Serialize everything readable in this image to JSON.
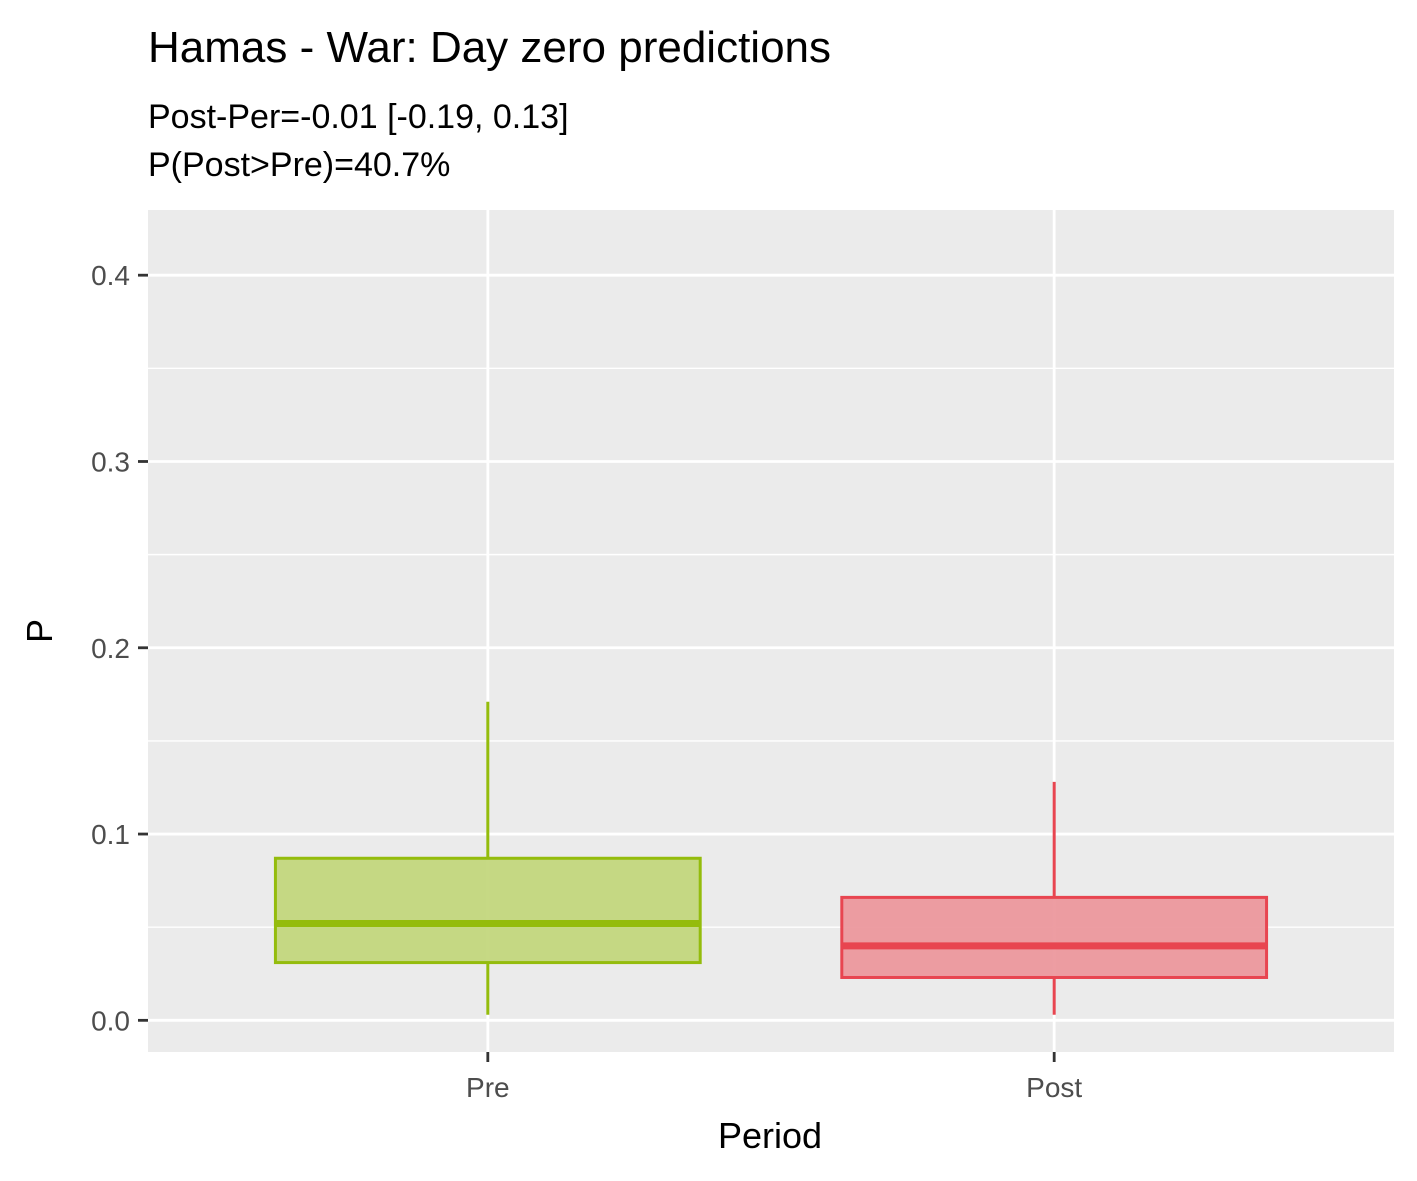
{
  "chart_data": {
    "type": "boxplot",
    "title": "Hamas - War: Day zero predictions",
    "subtitle": [
      "Post-Per=-0.01 [-0.19, 0.13]",
      "P(Post>Pre)=40.7%"
    ],
    "xlabel": "Period",
    "ylabel": "P",
    "ylim": [
      -0.017,
      0.435
    ],
    "y_ticks": [
      0.0,
      0.1,
      0.2,
      0.3,
      0.4
    ],
    "y_tick_labels": [
      "0.0",
      "0.1",
      "0.2",
      "0.3",
      "0.4"
    ],
    "categories": [
      "Pre",
      "Post"
    ],
    "grid": true,
    "legend": "none",
    "boxes": [
      {
        "category": "Pre",
        "color": "#94BC0C",
        "fill": "#C3D77D",
        "lower_whisker": 0.003,
        "q1": 0.031,
        "median": 0.052,
        "q3": 0.087,
        "upper_whisker": 0.171
      },
      {
        "category": "Post",
        "color": "#E84550",
        "fill": "#EC989D",
        "lower_whisker": 0.003,
        "q1": 0.023,
        "median": 0.04,
        "q3": 0.066,
        "upper_whisker": 0.128
      }
    ]
  }
}
